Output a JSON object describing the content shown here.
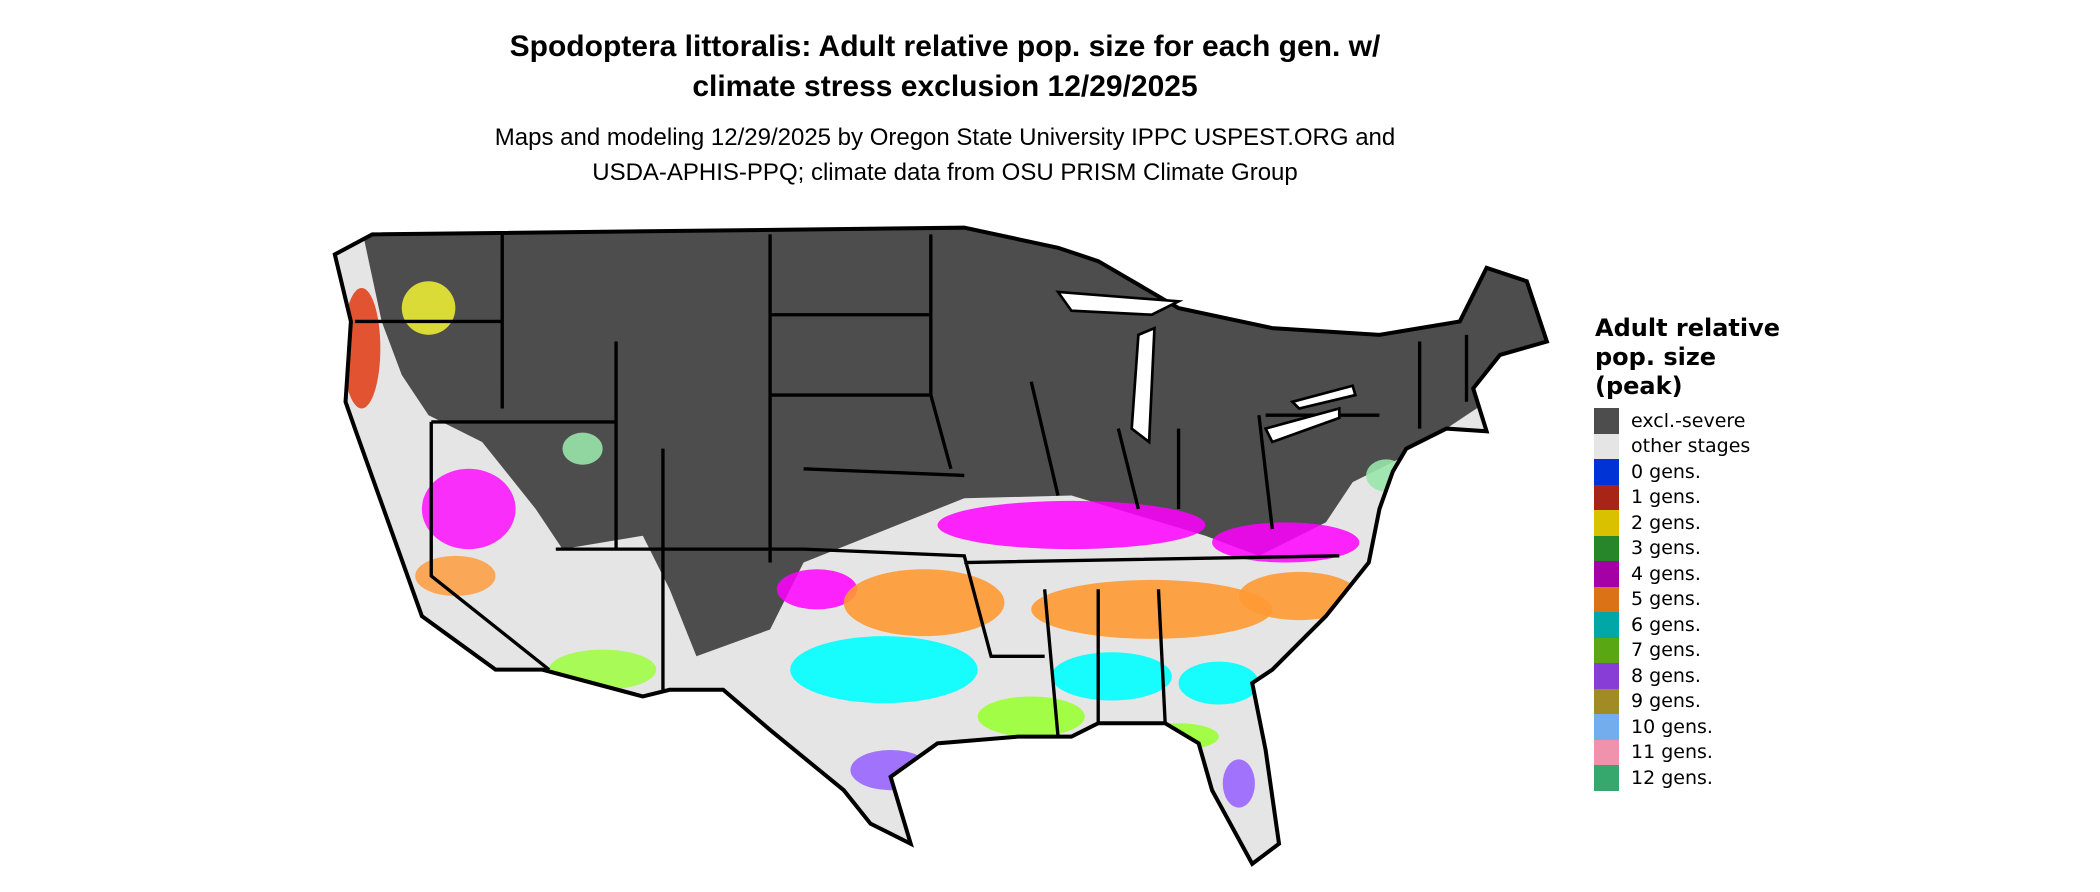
{
  "title": {
    "line1": "Spodoptera littoralis: Adult relative pop. size for each gen. w/",
    "line2": "climate stress exclusion 12/29/2025"
  },
  "subtitle": {
    "line1": "Maps and modeling 12/29/2025 by Oregon State University IPPC USPEST.ORG and",
    "line2": "USDA-APHIS-PPQ; climate data from OSU PRISM Climate Group"
  },
  "legend": {
    "title_lines": [
      "Adult relative",
      "pop. size",
      "(peak)"
    ],
    "items": [
      {
        "label": "excl.-severe",
        "color": "#4d4d4d"
      },
      {
        "label": "other stages",
        "color": "#e5e5e5"
      },
      {
        "label": "0 gens.",
        "color": "#0033d6"
      },
      {
        "label": "1 gens.",
        "color": "#a82417"
      },
      {
        "label": "2 gens.",
        "color": "#d9c100"
      },
      {
        "label": "3 gens.",
        "color": "#27862a"
      },
      {
        "label": "4 gens.",
        "color": "#a500a5"
      },
      {
        "label": "5 gens.",
        "color": "#db7316"
      },
      {
        "label": "6 gens.",
        "color": "#00a7a7"
      },
      {
        "label": "7 gens.",
        "color": "#5aa714"
      },
      {
        "label": "8 gens.",
        "color": "#873dd6"
      },
      {
        "label": "9 gens.",
        "color": "#a08b24"
      },
      {
        "label": "10 gens.",
        "color": "#74adee"
      },
      {
        "label": "11 gens.",
        "color": "#f192ad"
      },
      {
        "label": "12 gens.",
        "color": "#37a86d"
      }
    ]
  },
  "map_colors": {
    "excluded": "#4d4d4d",
    "other": "#e5e5e5",
    "gen4_map": "#ff00ff",
    "gen5_map": "#ff9933",
    "gen6_map": "#00ffff",
    "gen7_map": "#99ff33",
    "gen8_map": "#9966ff",
    "gen1_map": "#e23b12",
    "gen2_map": "#ffff33",
    "gen12_map": "#99e6aa",
    "border": "#000000"
  }
}
